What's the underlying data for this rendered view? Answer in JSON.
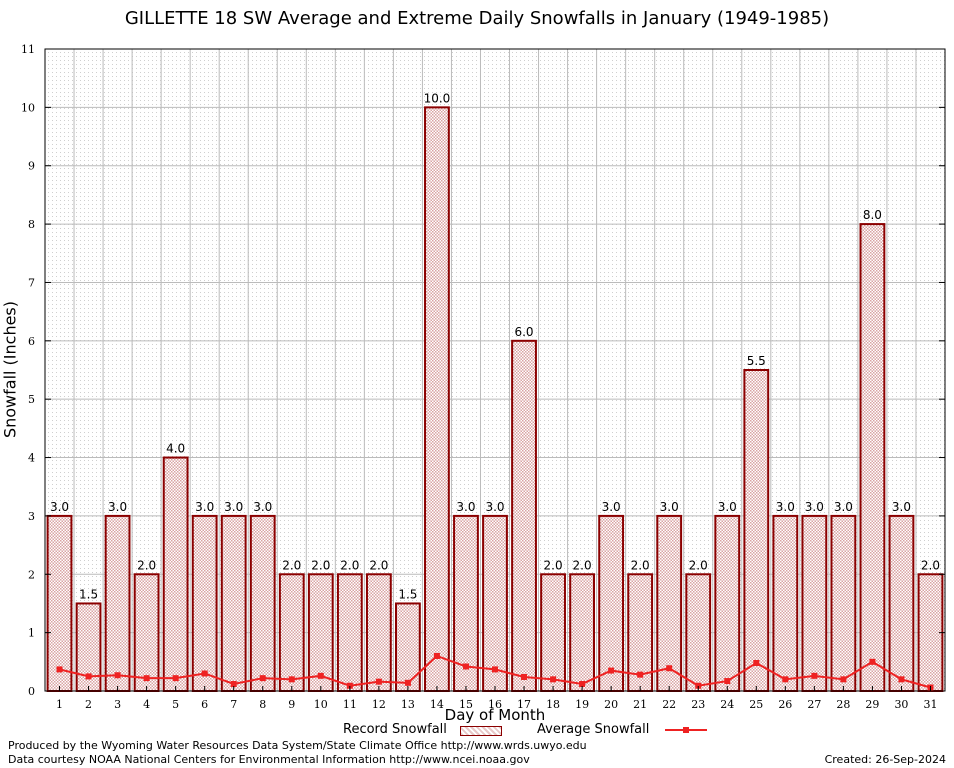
{
  "chart_data": {
    "type": "bar",
    "title": "GILLETTE 18 SW Average and Extreme Daily Snowfalls in January (1949-1985)",
    "xlabel": "Day of Month",
    "ylabel": "Snowfall (Inches)",
    "ylim": [
      0,
      11
    ],
    "yticks": [
      0,
      1,
      2,
      3,
      4,
      5,
      6,
      7,
      8,
      9,
      10,
      11
    ],
    "categories": [
      "1",
      "2",
      "3",
      "4",
      "5",
      "6",
      "7",
      "8",
      "9",
      "10",
      "11",
      "12",
      "13",
      "14",
      "15",
      "16",
      "17",
      "18",
      "19",
      "20",
      "21",
      "22",
      "23",
      "24",
      "25",
      "26",
      "27",
      "28",
      "29",
      "30",
      "31"
    ],
    "series": [
      {
        "name": "Record Snowfall",
        "type": "bar",
        "values": [
          3.0,
          1.5,
          3.0,
          2.0,
          4.0,
          3.0,
          3.0,
          3.0,
          2.0,
          2.0,
          2.0,
          2.0,
          1.5,
          10.0,
          3.0,
          3.0,
          6.0,
          2.0,
          2.0,
          3.0,
          2.0,
          3.0,
          2.0,
          3.0,
          5.5,
          3.0,
          3.0,
          3.0,
          8.0,
          3.0,
          2.0
        ],
        "labels": [
          "3.0",
          "1.5",
          "3.0",
          "2.0",
          "4.0",
          "3.0",
          "3.0",
          "3.0",
          "2.0",
          "2.0",
          "2.0",
          "2.0",
          "1.5",
          "10.0",
          "3.0",
          "3.0",
          "6.0",
          "2.0",
          "2.0",
          "3.0",
          "2.0",
          "3.0",
          "2.0",
          "3.0",
          "5.5",
          "3.0",
          "3.0",
          "3.0",
          "8.0",
          "3.0",
          "2.0"
        ]
      },
      {
        "name": "Average Snowfall",
        "type": "line",
        "values": [
          0.37,
          0.25,
          0.27,
          0.22,
          0.22,
          0.3,
          0.12,
          0.22,
          0.2,
          0.26,
          0.09,
          0.16,
          0.14,
          0.6,
          0.42,
          0.37,
          0.24,
          0.2,
          0.12,
          0.35,
          0.28,
          0.39,
          0.09,
          0.17,
          0.48,
          0.2,
          0.26,
          0.2,
          0.5,
          0.2,
          0.06
        ]
      }
    ],
    "grid": true,
    "legend": "bottom",
    "colors": {
      "bar_fill": "#e8c8c8",
      "bar_stroke": "#8b0000",
      "line": "#ee2222",
      "grid": "#bbbbbb"
    }
  },
  "legend": {
    "record_label": "Record Snowfall",
    "average_label": "Average Snowfall"
  },
  "footer": {
    "produced": "Produced by the Wyoming Water Resources Data System/State Climate Office http://www.wrds.uwyo.edu",
    "source": "Data courtesy NOAA National Centers for Environmental Information http://www.ncei.noaa.gov",
    "created": "Created:  26-Sep-2024"
  }
}
